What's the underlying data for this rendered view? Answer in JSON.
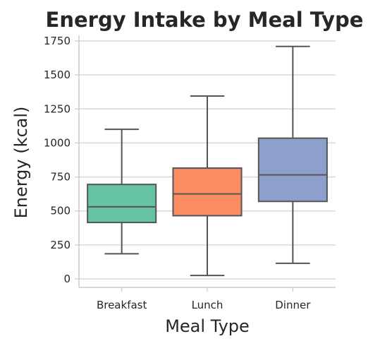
{
  "chart_data": {
    "type": "box",
    "title": "Energy Intake by Meal Type",
    "xlabel": "Meal Type",
    "ylabel": "Energy (kcal)",
    "ylim": [
      -50,
      1800
    ],
    "yticks": [
      0,
      250,
      500,
      750,
      1000,
      1250,
      1500,
      1750
    ],
    "grid": true,
    "categories": [
      "Breakfast",
      "Lunch",
      "Dinner"
    ],
    "boxes": [
      {
        "category": "Breakfast",
        "min": 185,
        "q1": 415,
        "median": 530,
        "q3": 695,
        "max": 1100,
        "color": "#66c2a5"
      },
      {
        "category": "Lunch",
        "min": 25,
        "q1": 465,
        "median": 625,
        "q3": 815,
        "max": 1345,
        "color": "#fc8d62"
      },
      {
        "category": "Dinner",
        "min": 115,
        "q1": 570,
        "median": 765,
        "q3": 1035,
        "max": 1710,
        "color": "#8da0cb"
      }
    ]
  }
}
